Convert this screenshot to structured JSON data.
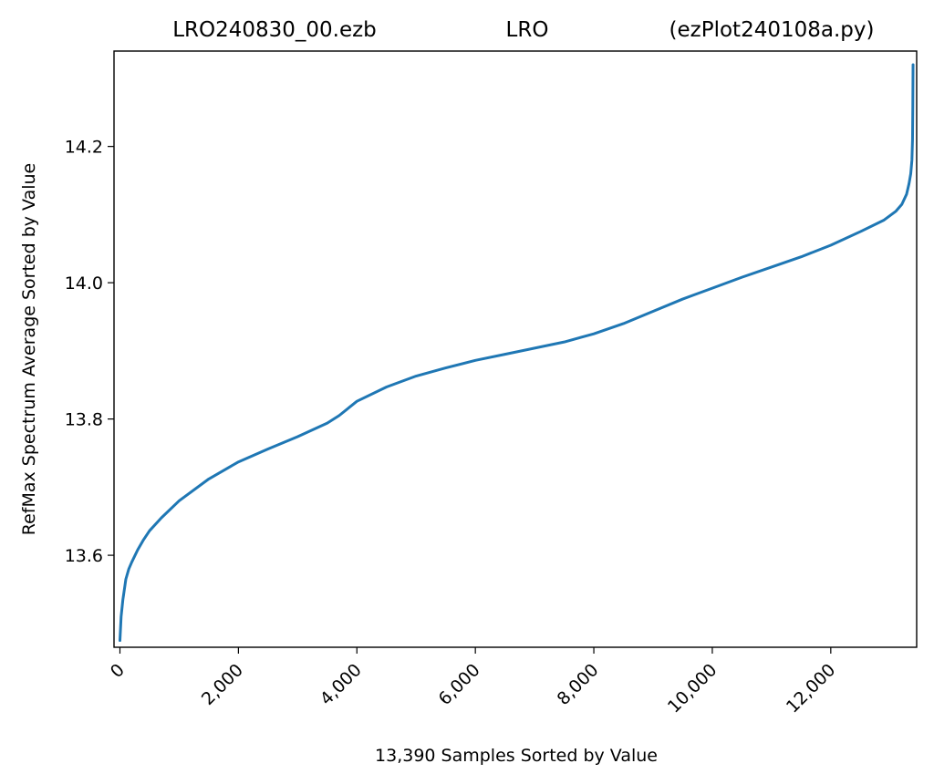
{
  "title": {
    "left": "LRO240830_00.ezb",
    "center": "LRO",
    "right": "(ezPlot240108a.py)"
  },
  "chart_data": {
    "type": "line",
    "title": "LRO240830_00.ezb LRO (ezPlot240108a.py)",
    "xlabel": "13,390 Samples Sorted by Value",
    "ylabel": "RefMax Spectrum Average Sorted by Value",
    "xlim": [
      -100,
      13450
    ],
    "ylim": [
      13.465,
      14.34
    ],
    "x_ticks": [
      0,
      2000,
      4000,
      6000,
      8000,
      10000,
      12000
    ],
    "x_tick_labels": [
      "0",
      "2,000",
      "4,000",
      "6,000",
      "8,000",
      "10,000",
      "12,000"
    ],
    "y_ticks": [
      13.6,
      13.8,
      14.0,
      14.2
    ],
    "y_tick_labels": [
      "13.6",
      "13.8",
      "14.0",
      "14.2"
    ],
    "grid": false,
    "legend": "none",
    "series": [
      {
        "color": "#1f77b4",
        "x": [
          0,
          20,
          50,
          100,
          150,
          200,
          300,
          400,
          500,
          700,
          1000,
          1500,
          2000,
          2500,
          3000,
          3500,
          3700,
          4000,
          4500,
          5000,
          5500,
          6000,
          6500,
          7000,
          7500,
          8000,
          8500,
          9000,
          9500,
          10000,
          10500,
          11000,
          11500,
          12000,
          12500,
          12900,
          13100,
          13200,
          13280,
          13320,
          13350,
          13370,
          13380,
          13385,
          13389
        ],
        "y": [
          13.475,
          13.51,
          13.535,
          13.565,
          13.58,
          13.59,
          13.608,
          13.623,
          13.636,
          13.655,
          13.68,
          13.712,
          13.737,
          13.756,
          13.774,
          13.794,
          13.805,
          13.826,
          13.847,
          13.863,
          13.875,
          13.886,
          13.895,
          13.904,
          13.913,
          13.925,
          13.94,
          13.958,
          13.976,
          13.992,
          14.008,
          14.023,
          14.038,
          14.055,
          14.075,
          14.092,
          14.105,
          14.115,
          14.13,
          14.145,
          14.16,
          14.18,
          14.21,
          14.26,
          14.32
        ]
      }
    ]
  }
}
